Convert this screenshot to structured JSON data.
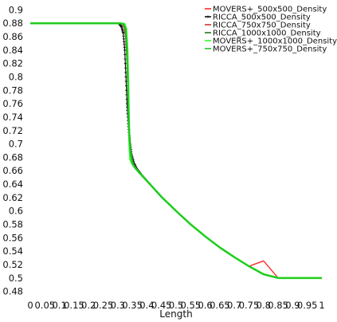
{
  "chart_data": {
    "type": "line",
    "title": "",
    "xlabel": "Length",
    "ylabel": "",
    "xlim": [
      0,
      1
    ],
    "ylim": [
      0.47,
      0.91
    ],
    "grid": false,
    "legend_position": "top-right",
    "x_tick_labels": [
      "0",
      "0.05",
      "0.1",
      "0.15",
      "0.2",
      "0.25",
      "0.3",
      "0.35",
      "0.4",
      "0.45",
      "0.5",
      "0.55",
      "0.6",
      "0.65",
      "0.7",
      "0.75",
      "0.8",
      "0.85",
      "0.9",
      "0.95",
      "1"
    ],
    "x_tick_values": [
      0,
      0.05,
      0.1,
      0.15,
      0.2,
      0.25,
      0.3,
      0.35,
      0.4,
      0.45,
      0.5,
      0.55,
      0.6,
      0.65,
      0.7,
      0.75,
      0.8,
      0.85,
      0.9,
      0.95,
      1
    ],
    "y_tick_labels": [
      "0.48",
      "0.5",
      "0.52",
      "0.54",
      "0.56",
      "0.58",
      "0.6",
      "0.62",
      "0.64",
      "0.66",
      "0.68",
      "0.7",
      "0.72",
      "0.74",
      "0.76",
      "0.78",
      "0.8",
      "0.82",
      "0.84",
      "0.86",
      "0.88",
      "0.9"
    ],
    "y_tick_values": [
      0.48,
      0.5,
      0.52,
      0.54,
      0.56,
      0.58,
      0.6,
      0.62,
      0.64,
      0.66,
      0.68,
      0.7,
      0.72,
      0.74,
      0.76,
      0.78,
      0.8,
      0.82,
      0.84,
      0.86,
      0.88,
      0.9
    ],
    "series": [
      {
        "name": "MOVERS+_500x500_Density",
        "color": "#ff2a2a",
        "marker": "none",
        "x": [
          0,
          0.2,
          0.3,
          0.315,
          0.322,
          0.327,
          0.331,
          0.334,
          0.337,
          0.34,
          0.345,
          0.352,
          0.362,
          0.375,
          0.4,
          0.45,
          0.5,
          0.55,
          0.6,
          0.65,
          0.7,
          0.75,
          0.8,
          0.85,
          0.9,
          0.95,
          1.0
        ],
        "y": [
          0.88,
          0.88,
          0.88,
          0.879,
          0.874,
          0.86,
          0.83,
          0.79,
          0.75,
          0.71,
          0.685,
          0.671,
          0.664,
          0.657,
          0.645,
          0.621,
          0.6,
          0.58,
          0.562,
          0.5455,
          0.531,
          0.5175,
          0.5255,
          0.5,
          0.5,
          0.5,
          0.5
        ]
      },
      {
        "name": "RICCA_500x500_Density",
        "color": "#111111",
        "marker": "plus",
        "x": [
          0,
          0.2,
          0.29,
          0.305,
          0.313,
          0.319,
          0.324,
          0.328,
          0.332,
          0.336,
          0.341,
          0.347,
          0.355,
          0.365,
          0.378,
          0.4,
          0.45,
          0.5,
          0.55,
          0.6,
          0.65,
          0.7,
          0.75,
          0.8,
          0.85,
          0.9,
          0.95,
          1.0
        ],
        "y": [
          0.88,
          0.88,
          0.88,
          0.879,
          0.875,
          0.865,
          0.84,
          0.8,
          0.76,
          0.73,
          0.705,
          0.685,
          0.672,
          0.663,
          0.656,
          0.645,
          0.621,
          0.6,
          0.58,
          0.562,
          0.5455,
          0.531,
          0.5175,
          0.5055,
          0.5,
          0.5,
          0.5,
          0.5
        ]
      },
      {
        "name": "RICCA_750x750_Density",
        "color": "#c8372d",
        "marker": "none",
        "x": [
          0,
          0.2,
          0.3,
          0.316,
          0.323,
          0.328,
          0.332,
          0.335,
          0.338,
          0.342,
          0.348,
          0.356,
          0.366,
          0.378,
          0.4,
          0.45,
          0.5,
          0.55,
          0.6,
          0.65,
          0.7,
          0.75,
          0.8,
          0.85,
          0.9,
          0.95,
          1.0
        ],
        "y": [
          0.88,
          0.88,
          0.88,
          0.879,
          0.874,
          0.86,
          0.82,
          0.78,
          0.74,
          0.705,
          0.68,
          0.668,
          0.661,
          0.655,
          0.645,
          0.621,
          0.6,
          0.58,
          0.562,
          0.5455,
          0.531,
          0.5175,
          0.5055,
          0.5,
          0.5,
          0.5,
          0.5
        ]
      },
      {
        "name": "RICCA_1000x1000_Density",
        "color": "#1f7a1f",
        "marker": "none",
        "x": [
          0,
          0.2,
          0.305,
          0.318,
          0.325,
          0.329,
          0.333,
          0.336,
          0.339,
          0.343,
          0.35,
          0.358,
          0.368,
          0.38,
          0.4,
          0.45,
          0.5,
          0.55,
          0.6,
          0.65,
          0.7,
          0.75,
          0.8,
          0.85,
          0.9,
          0.95,
          1.0
        ],
        "y": [
          0.88,
          0.88,
          0.88,
          0.879,
          0.872,
          0.85,
          0.81,
          0.77,
          0.73,
          0.7,
          0.677,
          0.666,
          0.659,
          0.654,
          0.645,
          0.621,
          0.6,
          0.58,
          0.562,
          0.5455,
          0.531,
          0.5175,
          0.5055,
          0.5,
          0.5,
          0.5,
          0.5
        ]
      },
      {
        "name": "MOVERS+_1000x1000_Density",
        "color": "#2bff2b",
        "marker": "none",
        "x": [
          0,
          0.2,
          0.31,
          0.323,
          0.329,
          0.333,
          0.336,
          0.338,
          0.34,
          0.343,
          0.35,
          0.36,
          0.372,
          0.385,
          0.4,
          0.45,
          0.5,
          0.55,
          0.6,
          0.65,
          0.7,
          0.75,
          0.8,
          0.85,
          0.9,
          0.95,
          1.0
        ],
        "y": [
          0.88,
          0.88,
          0.88,
          0.879,
          0.872,
          0.84,
          0.79,
          0.74,
          0.7,
          0.677,
          0.67,
          0.664,
          0.658,
          0.652,
          0.645,
          0.621,
          0.6,
          0.58,
          0.562,
          0.5455,
          0.531,
          0.5175,
          0.5055,
          0.5,
          0.5,
          0.5,
          0.5
        ]
      },
      {
        "name": "MOVERS+_750x750_Density",
        "color": "#22c422",
        "marker": "none",
        "x": [
          0,
          0.2,
          0.306,
          0.32,
          0.327,
          0.331,
          0.334,
          0.337,
          0.34,
          0.344,
          0.35,
          0.358,
          0.37,
          0.382,
          0.4,
          0.45,
          0.5,
          0.55,
          0.6,
          0.65,
          0.7,
          0.75,
          0.8,
          0.85,
          0.9,
          0.95,
          1.0
        ],
        "y": [
          0.88,
          0.88,
          0.88,
          0.879,
          0.872,
          0.85,
          0.8,
          0.75,
          0.71,
          0.685,
          0.672,
          0.665,
          0.659,
          0.653,
          0.645,
          0.621,
          0.6,
          0.58,
          0.562,
          0.5455,
          0.531,
          0.5175,
          0.5055,
          0.5,
          0.5,
          0.5,
          0.5
        ]
      }
    ]
  }
}
